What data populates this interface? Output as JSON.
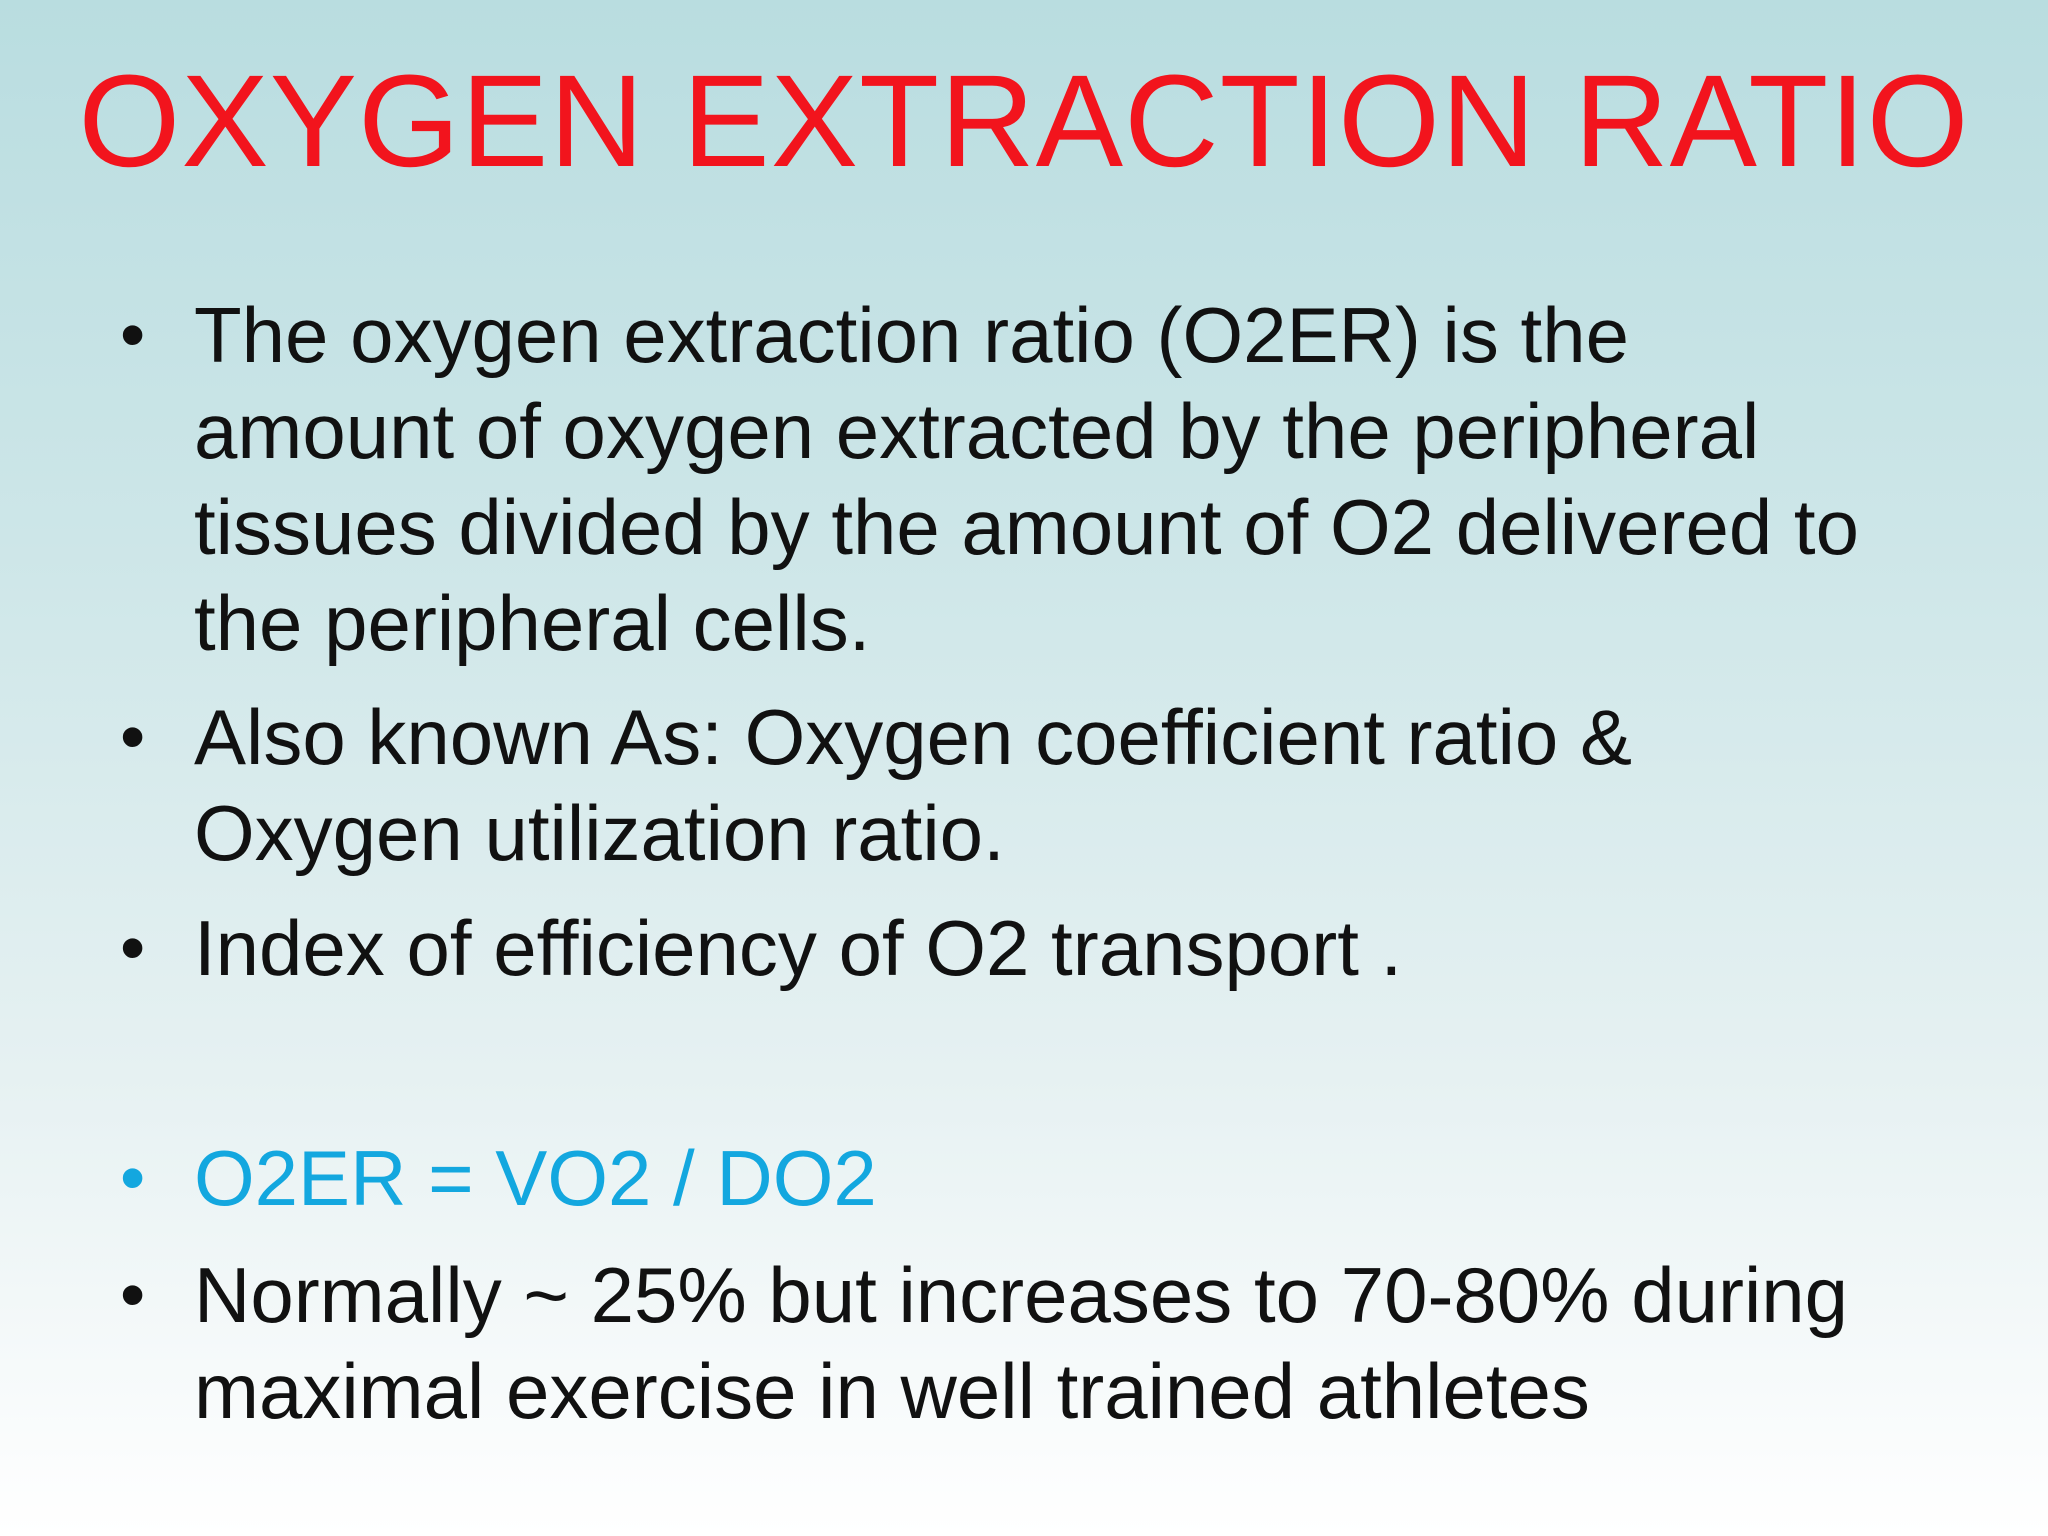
{
  "colors": {
    "title": "#f2141d",
    "body_text": "#111111",
    "highlight": "#13a7df",
    "background_top": "#b9dde0",
    "background_bottom": "#ffffff"
  },
  "slide": {
    "title": "OXYGEN EXTRACTION RATIO",
    "bullet_glyph": "•",
    "bullets": [
      {
        "lines": [
          "The oxygen extraction ratio (O2ER) is the",
          "amount of oxygen extracted by the peripheral",
          "tissues divided by the amount of O2 delivered to",
          "the peripheral cells."
        ]
      },
      {
        "lines": [
          "Also known As: Oxygen coefficient ratio &",
          "Oxygen utilization ratio."
        ]
      },
      {
        "lines": [
          "Index of efficiency of O2 transport ."
        ]
      },
      {
        "lines": [
          "O2ER = VO2 / DO2"
        ]
      },
      {
        "lines": [
          "Normally ~ 25% but increases to 70-80% during",
          "maximal exercise in well trained athletes"
        ]
      }
    ]
  }
}
